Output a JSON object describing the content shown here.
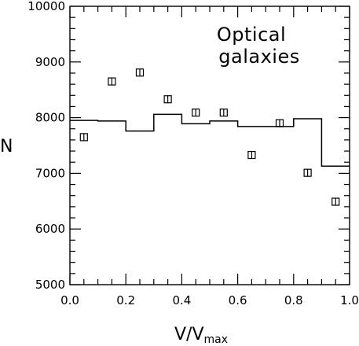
{
  "chart_data": {
    "type": "scatter",
    "title": "",
    "xlabel_main": "V/V",
    "xlabel_sub": "max",
    "ylabel": "N",
    "xlim": [
      0.0,
      1.0
    ],
    "ylim": [
      5000,
      10000
    ],
    "x_ticks": [
      "0.0",
      "0.2",
      "0.4",
      "0.6",
      "0.8",
      "1.0"
    ],
    "y_ticks": [
      "5000",
      "6000",
      "7000",
      "8000",
      "9000",
      "10000"
    ],
    "x_tick_values": [
      0.0,
      0.2,
      0.4,
      0.6,
      0.8,
      1.0
    ],
    "y_tick_values": [
      5000,
      6000,
      7000,
      8000,
      9000,
      10000
    ],
    "annotation_lines": [
      "Optical",
      "galaxies"
    ],
    "points": {
      "x": [
        0.05,
        0.15,
        0.25,
        0.35,
        0.45,
        0.55,
        0.65,
        0.75,
        0.85,
        0.95
      ],
      "y": [
        7650,
        8650,
        8810,
        8330,
        8090,
        8090,
        7330,
        7900,
        7010,
        6490
      ]
    },
    "histogram": {
      "edges": [
        0.0,
        0.1,
        0.2,
        0.3,
        0.4,
        0.5,
        0.6,
        0.7,
        0.8,
        0.9,
        1.0
      ],
      "values": [
        7950,
        7940,
        7760,
        8060,
        7890,
        7940,
        7840,
        7840,
        7980,
        7130
      ]
    }
  }
}
